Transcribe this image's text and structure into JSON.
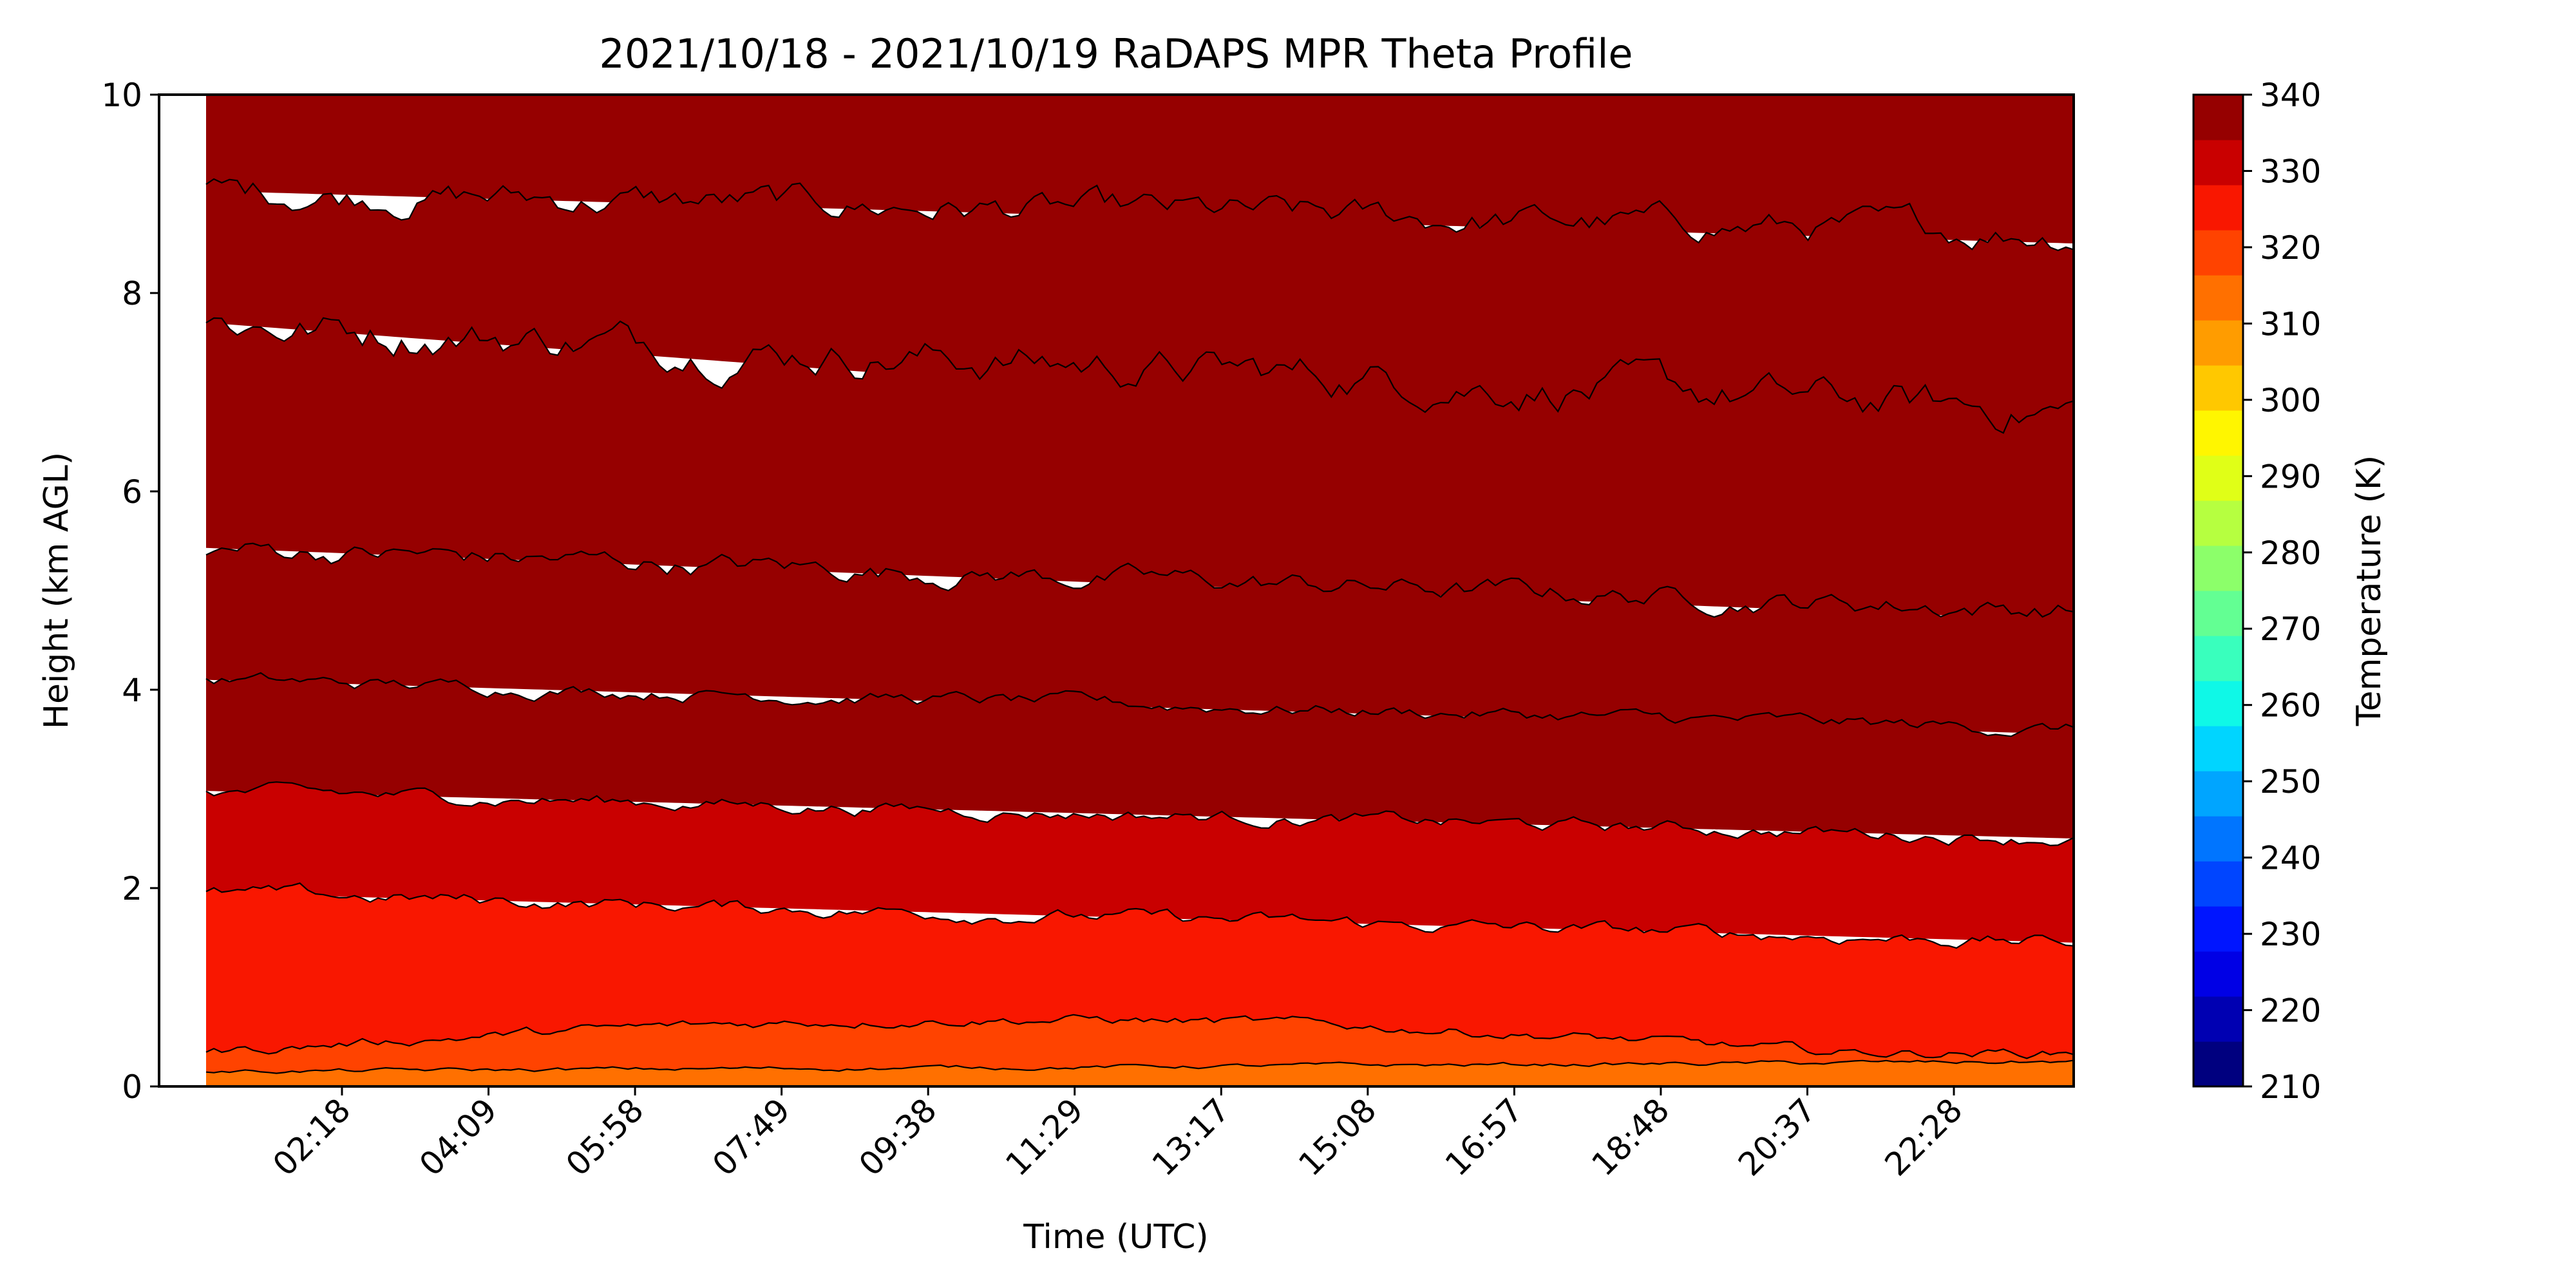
{
  "chart_data": {
    "type": "heatmap",
    "title": "2021/10/18 - 2021/10/19 RaDAPS MPR Theta Profile",
    "xlabel": "Time (UTC)",
    "ylabel": "Height (km AGL)",
    "ylim": [
      0,
      10
    ],
    "yticks": [
      "0",
      "2",
      "4",
      "6",
      "8",
      "10"
    ],
    "xticks": [
      "02:18",
      "04:09",
      "05:58",
      "07:49",
      "09:38",
      "11:29",
      "13:17",
      "15:08",
      "16:57",
      "18:48",
      "20:37",
      "22:28"
    ],
    "grid": false,
    "colorbar": {
      "label": "Temperature (K)",
      "range": [
        210,
        340
      ],
      "level_step": 5,
      "tick_labels": [
        "210",
        "220",
        "230",
        "240",
        "250",
        "260",
        "270",
        "280",
        "290",
        "300",
        "310",
        "320",
        "330",
        "340"
      ],
      "colors": [
        "#00007f",
        "#0000b2",
        "#0000e5",
        "#0015ff",
        "#0045ff",
        "#0075ff",
        "#00a5ff",
        "#00d5ff",
        "#0ff8e7",
        "#39ffbd",
        "#63ff93",
        "#8cff6a",
        "#b6ff40",
        "#e0ff17",
        "#fff600",
        "#ffc800",
        "#ff9c00",
        "#ff7000",
        "#ff4300",
        "#f91700",
        "#c90000",
        "#960000"
      ]
    },
    "contour_levels_k": [
      290,
      295,
      300,
      305,
      310,
      315,
      320,
      325,
      330,
      335
    ],
    "contour_start_heights_km": [
      0.3,
      1.95,
      2.98,
      4.1,
      5.43,
      7.7,
      9.03,
      10.0
    ]
  }
}
